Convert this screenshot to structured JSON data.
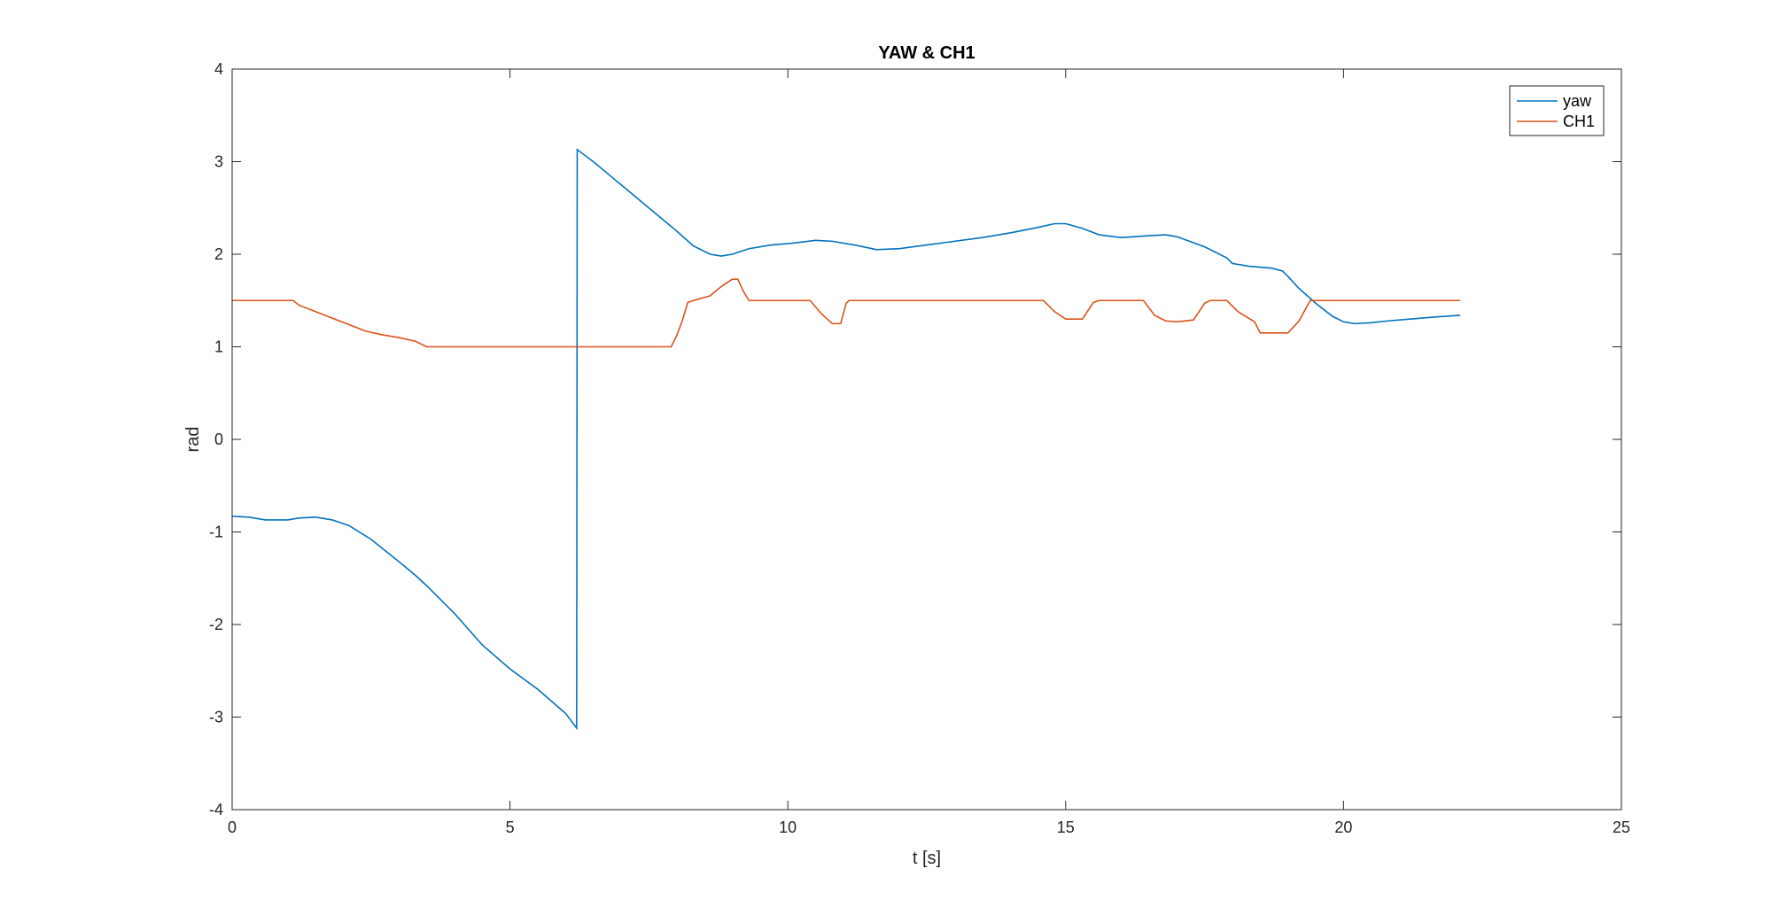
{
  "chart_data": {
    "type": "line",
    "title": "YAW & CH1",
    "xlabel": "t [s]",
    "ylabel": "rad",
    "xlim": [
      0,
      25
    ],
    "ylim": [
      -4,
      4
    ],
    "xticks": [
      0,
      5,
      10,
      15,
      20,
      25
    ],
    "yticks": [
      -4,
      -3,
      -2,
      -1,
      0,
      1,
      2,
      3,
      4
    ],
    "grid": false,
    "legend_position": "top-right",
    "series": [
      {
        "name": "yaw",
        "color": "#0072BD",
        "points": [
          [
            0,
            -0.83
          ],
          [
            0.3,
            -0.84
          ],
          [
            0.6,
            -0.87
          ],
          [
            1.0,
            -0.87
          ],
          [
            1.2,
            -0.85
          ],
          [
            1.5,
            -0.84
          ],
          [
            1.8,
            -0.87
          ],
          [
            2.1,
            -0.93
          ],
          [
            2.5,
            -1.08
          ],
          [
            3.0,
            -1.32
          ],
          [
            3.3,
            -1.47
          ],
          [
            3.5,
            -1.58
          ],
          [
            4.0,
            -1.88
          ],
          [
            4.5,
            -2.22
          ],
          [
            5.0,
            -2.48
          ],
          [
            5.5,
            -2.7
          ],
          [
            6.0,
            -2.96
          ],
          [
            6.2,
            -3.12
          ],
          [
            6.21,
            3.13
          ],
          [
            6.5,
            3.0
          ],
          [
            6.8,
            2.85
          ],
          [
            7.0,
            2.75
          ],
          [
            7.5,
            2.5
          ],
          [
            8.0,
            2.25
          ],
          [
            8.3,
            2.09
          ],
          [
            8.6,
            2.0
          ],
          [
            8.8,
            1.98
          ],
          [
            9.0,
            2.0
          ],
          [
            9.3,
            2.06
          ],
          [
            9.7,
            2.1
          ],
          [
            10.1,
            2.12
          ],
          [
            10.5,
            2.15
          ],
          [
            10.8,
            2.14
          ],
          [
            11.2,
            2.1
          ],
          [
            11.6,
            2.05
          ],
          [
            12.0,
            2.06
          ],
          [
            12.5,
            2.1
          ],
          [
            13.0,
            2.14
          ],
          [
            13.5,
            2.18
          ],
          [
            14.0,
            2.23
          ],
          [
            14.5,
            2.29
          ],
          [
            14.8,
            2.33
          ],
          [
            15.0,
            2.33
          ],
          [
            15.3,
            2.28
          ],
          [
            15.6,
            2.21
          ],
          [
            16.0,
            2.18
          ],
          [
            16.5,
            2.2
          ],
          [
            16.8,
            2.21
          ],
          [
            17.0,
            2.19
          ],
          [
            17.5,
            2.08
          ],
          [
            17.9,
            1.96
          ],
          [
            18.0,
            1.9
          ],
          [
            18.3,
            1.87
          ],
          [
            18.7,
            1.85
          ],
          [
            18.9,
            1.82
          ],
          [
            19.0,
            1.76
          ],
          [
            19.2,
            1.63
          ],
          [
            19.5,
            1.47
          ],
          [
            19.8,
            1.33
          ],
          [
            20.0,
            1.27
          ],
          [
            20.2,
            1.25
          ],
          [
            20.5,
            1.26
          ],
          [
            20.8,
            1.28
          ],
          [
            21.2,
            1.3
          ],
          [
            21.6,
            1.32
          ],
          [
            22.1,
            1.34
          ]
        ]
      },
      {
        "name": "CH1",
        "color": "#D95319",
        "points": [
          [
            0,
            1.5
          ],
          [
            1.1,
            1.5
          ],
          [
            1.2,
            1.45
          ],
          [
            1.5,
            1.38
          ],
          [
            1.8,
            1.31
          ],
          [
            2.1,
            1.24
          ],
          [
            2.4,
            1.17
          ],
          [
            2.7,
            1.13
          ],
          [
            3.0,
            1.1
          ],
          [
            3.3,
            1.06
          ],
          [
            3.5,
            1.0
          ],
          [
            7.9,
            1.0
          ],
          [
            8.0,
            1.12
          ],
          [
            8.1,
            1.28
          ],
          [
            8.2,
            1.48
          ],
          [
            8.3,
            1.5
          ],
          [
            8.6,
            1.55
          ],
          [
            8.8,
            1.65
          ],
          [
            9.0,
            1.73
          ],
          [
            9.1,
            1.73
          ],
          [
            9.2,
            1.6
          ],
          [
            9.3,
            1.5
          ],
          [
            10.4,
            1.5
          ],
          [
            10.6,
            1.36
          ],
          [
            10.8,
            1.25
          ],
          [
            10.95,
            1.25
          ],
          [
            11.05,
            1.47
          ],
          [
            11.1,
            1.5
          ],
          [
            14.6,
            1.5
          ],
          [
            14.8,
            1.38
          ],
          [
            15.0,
            1.3
          ],
          [
            15.3,
            1.3
          ],
          [
            15.5,
            1.48
          ],
          [
            15.6,
            1.5
          ],
          [
            16.4,
            1.5
          ],
          [
            16.6,
            1.34
          ],
          [
            16.8,
            1.28
          ],
          [
            17.0,
            1.27
          ],
          [
            17.3,
            1.29
          ],
          [
            17.5,
            1.47
          ],
          [
            17.6,
            1.5
          ],
          [
            17.9,
            1.5
          ],
          [
            18.1,
            1.38
          ],
          [
            18.4,
            1.27
          ],
          [
            18.5,
            1.15
          ],
          [
            19.0,
            1.15
          ],
          [
            19.2,
            1.28
          ],
          [
            19.4,
            1.5
          ],
          [
            22.1,
            1.5
          ]
        ]
      }
    ]
  }
}
